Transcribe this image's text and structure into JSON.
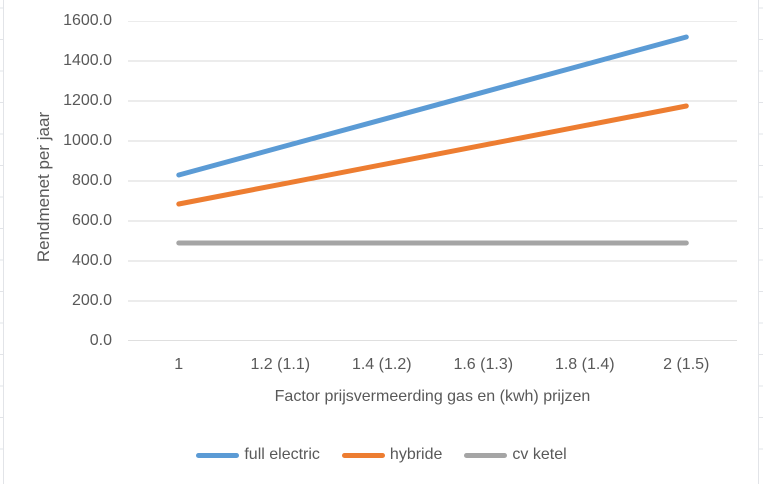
{
  "chart_data": {
    "type": "line",
    "categories": [
      "1",
      "1.2 (1.1)",
      "1.4 (1.2)",
      "1.6 (1.3)",
      "1.8 (1.4)",
      "2 (1.5)"
    ],
    "series": [
      {
        "name": "full electric",
        "color": "#5B9BD5",
        "values": [
          830,
          968,
          1106,
          1244,
          1382,
          1520
        ]
      },
      {
        "name": "hybride",
        "color": "#ED7D31",
        "values": [
          685,
          783,
          881,
          979,
          1077,
          1175
        ]
      },
      {
        "name": "cv ketel",
        "color": "#A5A5A5",
        "values": [
          490,
          490,
          490,
          490,
          490,
          490
        ]
      }
    ],
    "title": "",
    "xlabel": "Factor prijsvermeerding gas en (kwh) prijzen",
    "ylabel": "Rendmenet per jaar",
    "ylim": [
      0,
      1600
    ],
    "ytick_step": 200,
    "ytick_labels": [
      "0.0",
      "200.0",
      "400.0",
      "600.0",
      "800.0",
      "1000.0",
      "1200.0",
      "1400.0",
      "1600.0"
    ],
    "grid": "horizontal",
    "legend_position": "bottom"
  },
  "colors": {
    "gridline": "#D9D9D9",
    "axis_line": "#BFBFBF",
    "tick_text": "#595959",
    "sheet_gridline": "#E2E4E8"
  }
}
